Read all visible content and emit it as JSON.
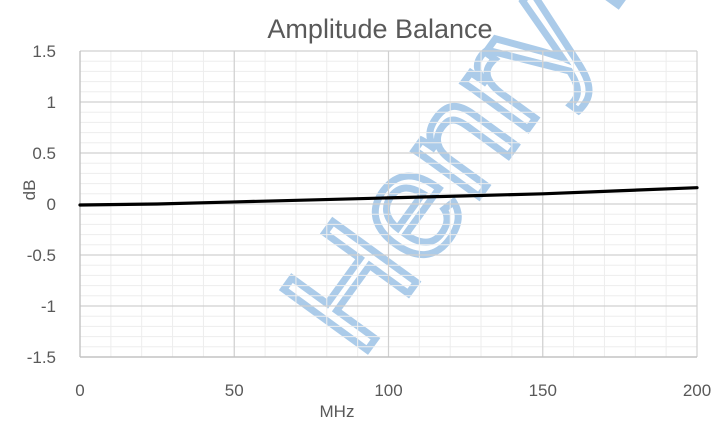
{
  "chart_data": {
    "type": "line",
    "title": "Amplitude Balance",
    "xlabel": "MHz",
    "ylabel": "dB",
    "xlim": [
      0,
      200
    ],
    "ylim": [
      -1.5,
      1.5
    ],
    "x_major_ticks": [
      0,
      50,
      100,
      150,
      200
    ],
    "y_major_ticks": [
      -1.5,
      -1,
      -0.5,
      0,
      0.5,
      1,
      1.5
    ],
    "x_tick_labels": [
      "0",
      "50",
      "100",
      "150",
      "200"
    ],
    "y_tick_labels": [
      "-1.5",
      "-1",
      "-0.5",
      "0",
      "0.5",
      "1",
      "1.5"
    ],
    "x_minor_step": 10,
    "y_minor_step": 0.1,
    "grid": true,
    "legend": "none",
    "series": [
      {
        "color": "#000000",
        "x": [
          0,
          25,
          50,
          75,
          100,
          125,
          150,
          175,
          200
        ],
        "y": [
          -0.01,
          0.0,
          0.02,
          0.04,
          0.06,
          0.08,
          0.1,
          0.13,
          0.16
        ]
      }
    ],
    "watermark": "HenryTec"
  }
}
